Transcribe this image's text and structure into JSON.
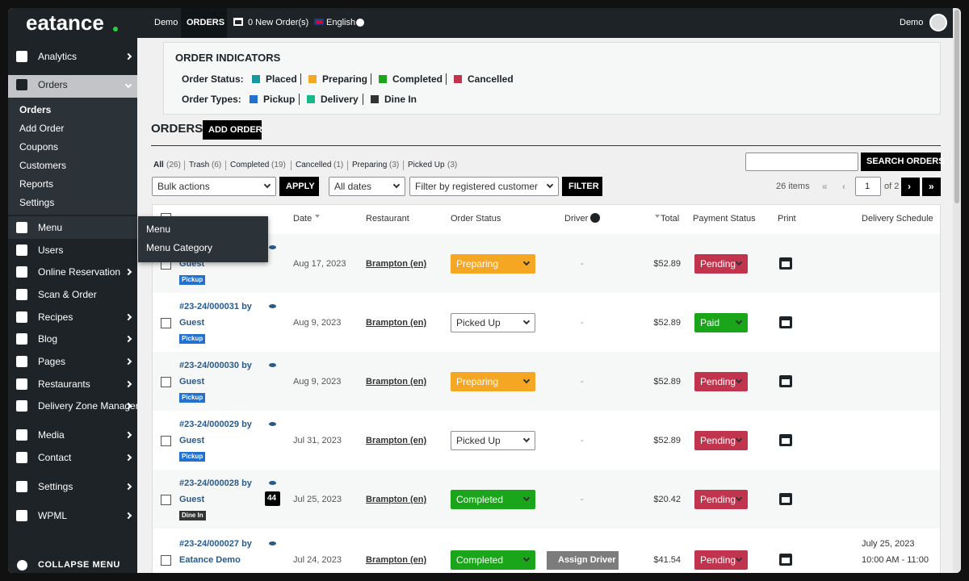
{
  "topbar": {
    "logo": "eatance",
    "links": [
      "Demo",
      "ORDERS",
      "0 New Order(s)",
      "English"
    ],
    "user": "Demo"
  },
  "sidebar": {
    "items": [
      "Analytics",
      "Orders",
      "Menu",
      "Users",
      "Online Reservation",
      "Scan & Order",
      "Recipes",
      "Blog",
      "Pages",
      "Restaurants",
      "Delivery Zone Manager",
      "Media",
      "Contact",
      "Settings",
      "WPML"
    ],
    "submenu": [
      "Orders",
      "Add Order",
      "Coupons",
      "Customers",
      "Reports",
      "Settings"
    ],
    "flyout": [
      "Menu",
      "Menu Category"
    ],
    "collapse": "COLLAPSE MENU"
  },
  "indicators": {
    "title": "ORDER INDICATORS",
    "status_label": "Order Status:",
    "statuses": [
      {
        "name": "Placed",
        "color": "#17989e"
      },
      {
        "name": "Preparing",
        "color": "#f5a623"
      },
      {
        "name": "Completed",
        "color": "#1aa51a"
      },
      {
        "name": "Cancelled",
        "color": "#c0344e"
      }
    ],
    "types_label": "Order Types:",
    "types": [
      {
        "name": "Pickup",
        "color": "#2271d1"
      },
      {
        "name": "Delivery",
        "color": "#17b98a"
      },
      {
        "name": "Dine In",
        "color": "#333333"
      }
    ]
  },
  "orders": {
    "title": "ORDERS",
    "add": "ADD ORDER",
    "filters": [
      {
        "name": "All",
        "count": "(26)"
      },
      {
        "name": "Trash",
        "count": "(6)"
      },
      {
        "name": "Completed",
        "count": "(19)"
      },
      {
        "name": "Cancelled",
        "count": "(1)"
      },
      {
        "name": "Preparing",
        "count": "(3)"
      },
      {
        "name": "Picked Up",
        "count": "(3)"
      }
    ],
    "search": "SEARCH ORDERS",
    "bulk": "Bulk actions",
    "apply": "APPLY",
    "dates": "All dates",
    "customer": "Filter by registered customer",
    "filter": "FILTER",
    "items": "26 items",
    "pager": [
      "«",
      "‹",
      "›",
      "»"
    ],
    "page": "1",
    "of": "of 2"
  },
  "table": {
    "headers": [
      "Date",
      "Restaurant",
      "Order Status",
      "Driver",
      "Total",
      "Payment Status",
      "Print",
      "Delivery Schedule"
    ],
    "rows": [
      {
        "id": null,
        "customer": "Guest",
        "type": "Pickup",
        "type_color": "#2271d1",
        "date": "Aug 17, 2023",
        "restaurant": "Brampton (en)",
        "status": "Preparing",
        "status_color": "#f5a623",
        "driver": "-",
        "total": "$52.89",
        "payment": "Pending",
        "payment_color": "#c0344e"
      },
      {
        "id": "#23-24/000031 by",
        "customer": "Guest",
        "type": "Pickup",
        "type_color": "#2271d1",
        "date": "Aug 9, 2023",
        "restaurant": "Brampton (en)",
        "status": "Picked Up",
        "status_color": null,
        "driver": "-",
        "total": "$52.89",
        "payment": "Paid",
        "payment_color": "#1aa51a"
      },
      {
        "id": "#23-24/000030 by",
        "customer": "Guest",
        "type": "Pickup",
        "type_color": "#2271d1",
        "date": "Aug 9, 2023",
        "restaurant": "Brampton (en)",
        "status": "Preparing",
        "status_color": "#f5a623",
        "driver": "-",
        "total": "$52.89",
        "payment": "Pending",
        "payment_color": "#c0344e"
      },
      {
        "id": "#23-24/000029 by",
        "customer": "Guest",
        "type": "Pickup",
        "type_color": "#2271d1",
        "date": "Jul 31, 2023",
        "restaurant": "Brampton (en)",
        "status": "Picked Up",
        "status_color": null,
        "driver": "-",
        "total": "$52.89",
        "payment": "Pending",
        "payment_color": "#c0344e"
      },
      {
        "id": "#23-24/000028 by",
        "customer": "Guest",
        "type": "Dine In",
        "type_color": "#333333",
        "badge": "44",
        "date": "Jul 25, 2023",
        "restaurant": "Brampton (en)",
        "status": "Completed",
        "status_color": "#1aa51a",
        "driver": "-",
        "total": "$20.42",
        "payment": "Pending",
        "payment_color": "#c0344e"
      },
      {
        "id": "#23-24/000027 by",
        "customer": "Eatance Demo",
        "type": null,
        "date": "Jul 24, 2023",
        "restaurant": "Brampton (en)",
        "status": "Completed",
        "status_color": "#1aa51a",
        "driver": "Assign Driver",
        "driver_button": true,
        "total": "$41.54",
        "payment": "Pending",
        "payment_color": "#c0344e",
        "schedule": [
          "July 25, 2023",
          "10:00 AM - 11:00"
        ]
      }
    ]
  }
}
